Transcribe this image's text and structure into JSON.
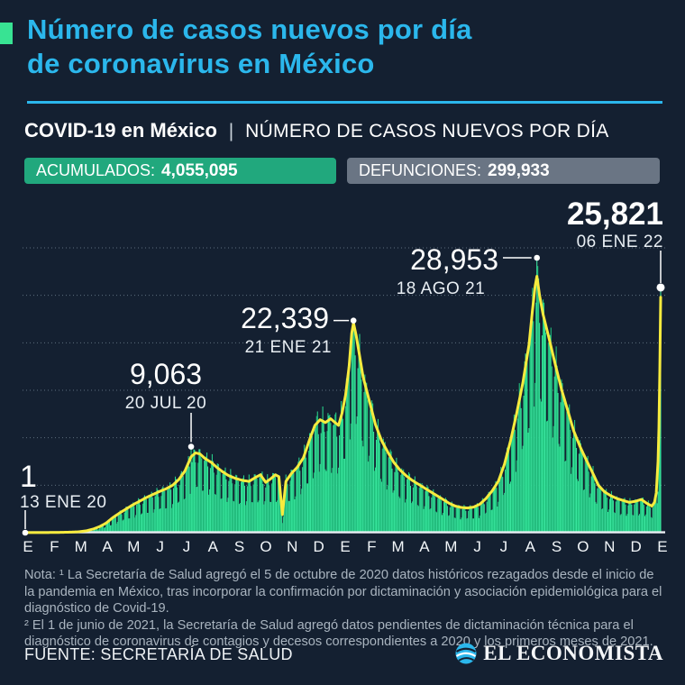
{
  "header": {
    "title_line1": "Número de casos nuevos por día",
    "title_line2": "de coronavirus en México",
    "subtitle_bold": "COVID-19 en México",
    "subtitle_separator": "|",
    "subtitle_rest": "NÚMERO DE CASOS NUEVOS POR DÍA"
  },
  "badges": {
    "accumulated_label": "ACUMULADOS:",
    "accumulated_value": "4,055,095",
    "deaths_label": "DEFUNCIONES:",
    "deaths_value": "299,933"
  },
  "chart_data": {
    "type": "bar",
    "title": "COVID-19 en México | Número de casos nuevos por día",
    "xlabel": "",
    "ylabel": "casos nuevos por día",
    "ylim": [
      0,
      32000
    ],
    "grid": "dotted-horizontal",
    "gridline_values": [
      5000,
      10000,
      15000,
      20000,
      25000,
      30000
    ],
    "x_labels": [
      "E",
      "F",
      "M",
      "A",
      "M",
      "J",
      "J",
      "A",
      "S",
      "O",
      "N",
      "D",
      "E",
      "F",
      "M",
      "A",
      "M",
      "J",
      "J",
      "A",
      "S",
      "O",
      "N",
      "D",
      "E"
    ],
    "start_label": "13 ENE 20",
    "end_label": "06 ENE 22",
    "days_total": 725,
    "avg_line_points": [
      [
        0,
        10
      ],
      [
        20,
        10
      ],
      [
        40,
        30
      ],
      [
        52,
        60
      ],
      [
        60,
        90
      ],
      [
        70,
        200
      ],
      [
        78,
        400
      ],
      [
        85,
        650
      ],
      [
        92,
        1000
      ],
      [
        100,
        1600
      ],
      [
        108,
        2100
      ],
      [
        115,
        2500
      ],
      [
        122,
        2900
      ],
      [
        130,
        3300
      ],
      [
        138,
        3700
      ],
      [
        145,
        4000
      ],
      [
        152,
        4300
      ],
      [
        160,
        4600
      ],
      [
        168,
        5000
      ],
      [
        175,
        5600
      ],
      [
        182,
        6500
      ],
      [
        189,
        8000
      ],
      [
        194,
        8400
      ],
      [
        199,
        8300
      ],
      [
        205,
        7800
      ],
      [
        212,
        7400
      ],
      [
        218,
        6900
      ],
      [
        225,
        6400
      ],
      [
        232,
        6000
      ],
      [
        240,
        5700
      ],
      [
        248,
        5500
      ],
      [
        255,
        5400
      ],
      [
        262,
        5800
      ],
      [
        268,
        6100
      ],
      [
        274,
        5300
      ],
      [
        280,
        5700
      ],
      [
        285,
        6100
      ],
      [
        289,
        5900
      ],
      [
        293,
        1900
      ],
      [
        297,
        5400
      ],
      [
        303,
        6200
      ],
      [
        310,
        6900
      ],
      [
        317,
        7900
      ],
      [
        324,
        9800
      ],
      [
        330,
        11300
      ],
      [
        336,
        11900
      ],
      [
        342,
        11600
      ],
      [
        348,
        12000
      ],
      [
        353,
        11600
      ],
      [
        357,
        11300
      ],
      [
        361,
        12600
      ],
      [
        365,
        14500
      ],
      [
        369,
        17500
      ],
      [
        372,
        21000
      ],
      [
        374,
        22100
      ],
      [
        377,
        20800
      ],
      [
        381,
        18600
      ],
      [
        385,
        16400
      ],
      [
        392,
        13900
      ],
      [
        399,
        11400
      ],
      [
        406,
        9700
      ],
      [
        413,
        8500
      ],
      [
        420,
        7400
      ],
      [
        427,
        6600
      ],
      [
        434,
        6000
      ],
      [
        441,
        5500
      ],
      [
        448,
        5100
      ],
      [
        455,
        4700
      ],
      [
        462,
        4300
      ],
      [
        469,
        3900
      ],
      [
        476,
        3500
      ],
      [
        483,
        3100
      ],
      [
        490,
        2800
      ],
      [
        497,
        2650
      ],
      [
        504,
        2600
      ],
      [
        511,
        2700
      ],
      [
        518,
        3000
      ],
      [
        525,
        3600
      ],
      [
        532,
        4400
      ],
      [
        539,
        5400
      ],
      [
        546,
        7200
      ],
      [
        553,
        9700
      ],
      [
        560,
        12600
      ],
      [
        567,
        15800
      ],
      [
        574,
        19800
      ],
      [
        578,
        23500
      ],
      [
        581,
        26000
      ],
      [
        583,
        27000
      ],
      [
        586,
        25000
      ],
      [
        590,
        23000
      ],
      [
        597,
        20400
      ],
      [
        604,
        17700
      ],
      [
        611,
        15100
      ],
      [
        618,
        12900
      ],
      [
        625,
        10700
      ],
      [
        632,
        9100
      ],
      [
        639,
        7700
      ],
      [
        646,
        6400
      ],
      [
        653,
        5000
      ],
      [
        660,
        4300
      ],
      [
        667,
        3900
      ],
      [
        674,
        3600
      ],
      [
        681,
        3400
      ],
      [
        688,
        3200
      ],
      [
        695,
        3300
      ],
      [
        702,
        3500
      ],
      [
        708,
        3100
      ],
      [
        714,
        2800
      ],
      [
        717,
        3200
      ],
      [
        719,
        4200
      ],
      [
        721,
        7500
      ],
      [
        722,
        11000
      ],
      [
        723,
        17000
      ],
      [
        724,
        24800
      ]
    ],
    "record_days": [
      [
        0,
        1
      ],
      [
        189,
        9063
      ],
      [
        374,
        22339
      ],
      [
        583,
        28953
      ],
      [
        724,
        25821
      ]
    ],
    "annotations": [
      {
        "value": "1",
        "date": "13 ENE 20",
        "day": 0,
        "num": 1
      },
      {
        "value": "9,063",
        "date": "20 JUL 20",
        "day": 189,
        "num": 9063
      },
      {
        "value": "22,339",
        "date": "21 ENE 21",
        "day": 374,
        "num": 22339
      },
      {
        "value": "28,953",
        "date": "18 AGO 21",
        "day": 583,
        "num": 28953
      },
      {
        "value": "25,821",
        "date": "06 ENE 22",
        "day": 724,
        "num": 25821
      }
    ]
  },
  "notes": {
    "note1": "Nota: ¹ La Secretaría de Salud agregó el 5 de octubre de 2020 datos históricos rezagados desde el inicio de la pandemia en México, tras incorporar la confirmación por dictaminación y asociación epidemiológica para el diagnóstico de Covid-19.",
    "note2": "² El 1 de junio de 2021, la Secretaría de Salud agregó datos pendientes de dictaminación técnica para el diagnóstico de coronavirus de contagios y decesos correspondientes a 2020 y los primeros meses de 2021."
  },
  "footer": {
    "source": "FUENTE: SECRETARÍA DE SALUD",
    "brand": "EL ECONOMISTA"
  },
  "colors": {
    "background": "#142031",
    "accent_cyan": "#2bb7ec",
    "accent_green": "#38e393",
    "badge_green": "#21a87d",
    "badge_gray": "#6a7584",
    "bar_greens": [
      "#29d58c",
      "#3ce6a0",
      "#21c47f"
    ],
    "line_yellow": "#f7eb3e",
    "grid": "#5e6e7e",
    "baseline": "#e9eef3",
    "note_text": "#a9b4bf"
  }
}
